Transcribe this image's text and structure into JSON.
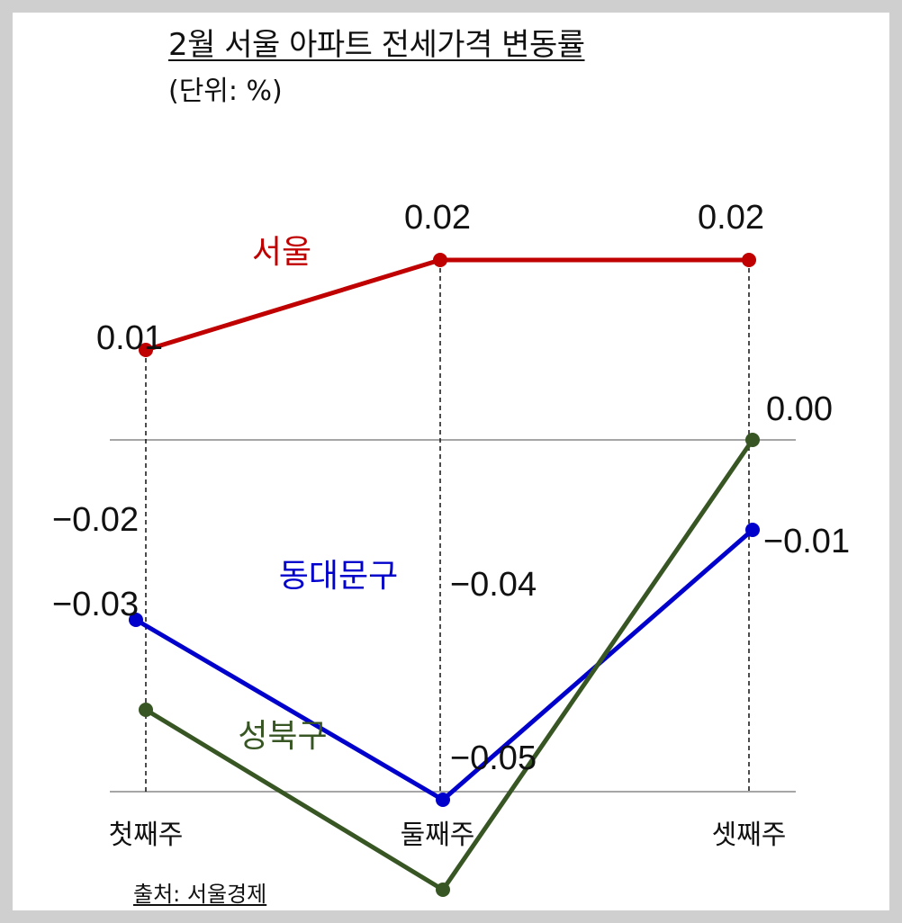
{
  "title": "2월 서울 아파트 전세가격 변동률",
  "subtitle": "(단위: %)",
  "source": "출처: 서울경제",
  "chart_data": {
    "type": "line",
    "title": "2월 서울 아파트 전세가격 변동률",
    "unit": "%",
    "categories": [
      "첫째주",
      "둘째주",
      "셋째주"
    ],
    "ylim": [
      -0.06,
      0.025
    ],
    "grid": false,
    "series": [
      {
        "name": "서울",
        "color": "#c00000",
        "values": [
          0.01,
          0.02,
          0.02
        ],
        "labels": [
          "0.01",
          "0.02",
          "0.02"
        ]
      },
      {
        "name": "동대문구",
        "color": "#0000cc",
        "values": [
          -0.02,
          -0.04,
          -0.01
        ],
        "labels": [
          "−0.02",
          "−0.04",
          "−0.01"
        ]
      },
      {
        "name": "성북구",
        "color": "#375623",
        "values": [
          -0.03,
          -0.05,
          0.0
        ],
        "labels": [
          "−0.03",
          "−0.05",
          "0.00"
        ]
      }
    ]
  }
}
